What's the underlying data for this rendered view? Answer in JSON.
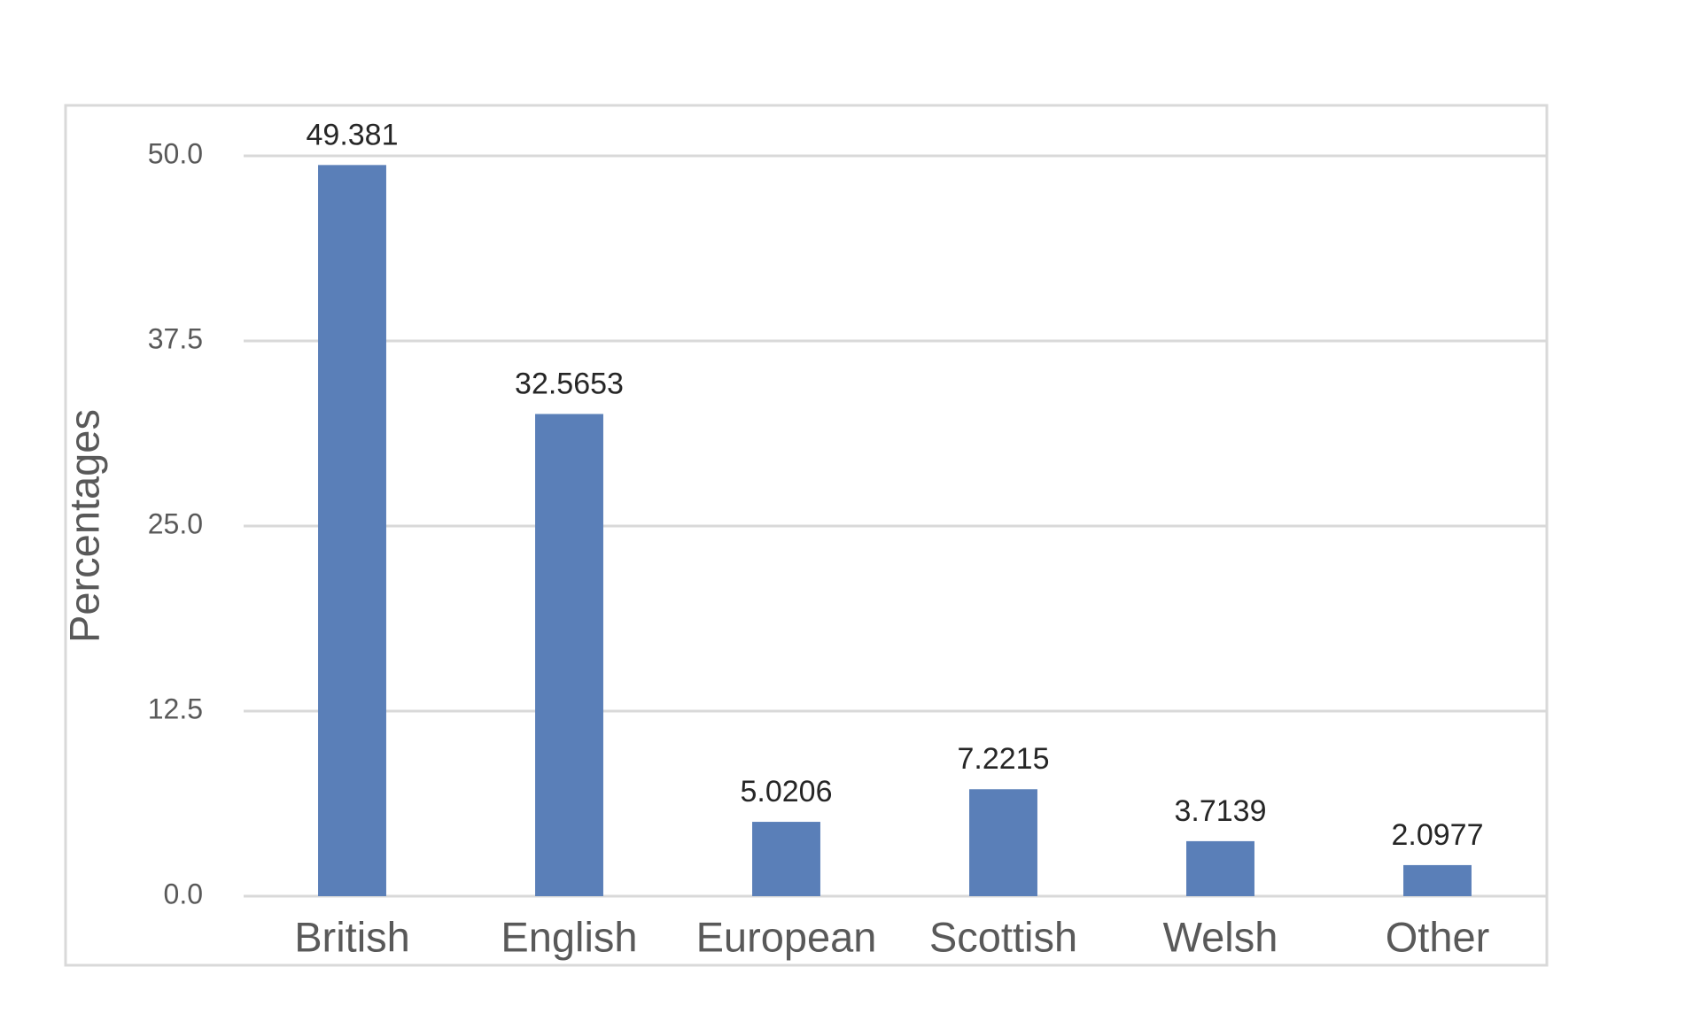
{
  "chart_data": {
    "type": "bar",
    "y_axis_label": "Percentages",
    "categories": [
      "British",
      "English",
      "European",
      "Scottish",
      "Welsh",
      "Other"
    ],
    "values": [
      49.381,
      32.5653,
      5.0206,
      7.2215,
      3.7139,
      2.0977
    ],
    "color": "#5a7fb8",
    "ylim": [
      0,
      50
    ],
    "yticks": [
      {
        "value": 0,
        "label": "0.0"
      },
      12.5,
      {
        "value": 25,
        "label": "25.0"
      },
      37.5,
      {
        "value": 50,
        "label": "50.0"
      }
    ],
    "grid": true
  }
}
